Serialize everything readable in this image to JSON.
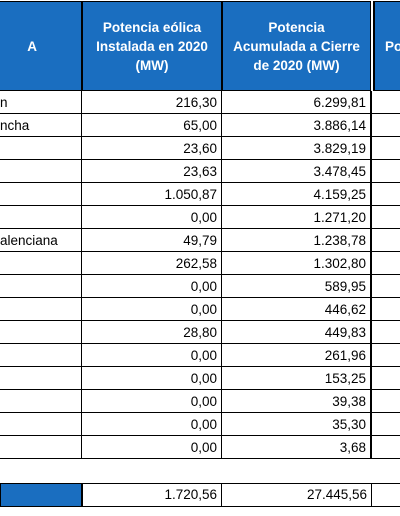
{
  "header": {
    "region": "A",
    "installed_2020": "Potencia eólica\nInstalada en 2020\n(MW)",
    "cumulative_2020": "Potencia\nAcumulada a Cierre\nde 2020 (MW)",
    "percent": "Po"
  },
  "rows": [
    {
      "name": "n",
      "installed": "216,30",
      "cumulative": "6.299,81"
    },
    {
      "name": "ncha",
      "installed": "65,00",
      "cumulative": "3.886,14"
    },
    {
      "name": "",
      "installed": "23,60",
      "cumulative": "3.829,19"
    },
    {
      "name": "",
      "installed": "23,63",
      "cumulative": "3.478,45"
    },
    {
      "name": "",
      "installed": "1.050,87",
      "cumulative": "4.159,25"
    },
    {
      "name": "",
      "installed": "0,00",
      "cumulative": "1.271,20"
    },
    {
      "name": "alenciana",
      "installed": "49,79",
      "cumulative": "1.238,78"
    },
    {
      "name": "",
      "installed": "262,58",
      "cumulative": "1.302,80"
    },
    {
      "name": "",
      "installed": "0,00",
      "cumulative": "589,95"
    },
    {
      "name": "",
      "installed": "0,00",
      "cumulative": "446,62"
    },
    {
      "name": "",
      "installed": "28,80",
      "cumulative": "449,83"
    },
    {
      "name": "",
      "installed": "0,00",
      "cumulative": "261,96"
    },
    {
      "name": "",
      "installed": "0,00",
      "cumulative": "153,25"
    },
    {
      "name": "",
      "installed": "0,00",
      "cumulative": "39,38"
    },
    {
      "name": "",
      "installed": "0,00",
      "cumulative": "35,30"
    },
    {
      "name": "",
      "installed": "0,00",
      "cumulative": "3,68"
    }
  ],
  "total": {
    "installed": "1.720,56",
    "cumulative": "27.445,56"
  },
  "colors": {
    "header_bg": "#1a6ec0",
    "header_text": "#ffffff"
  }
}
